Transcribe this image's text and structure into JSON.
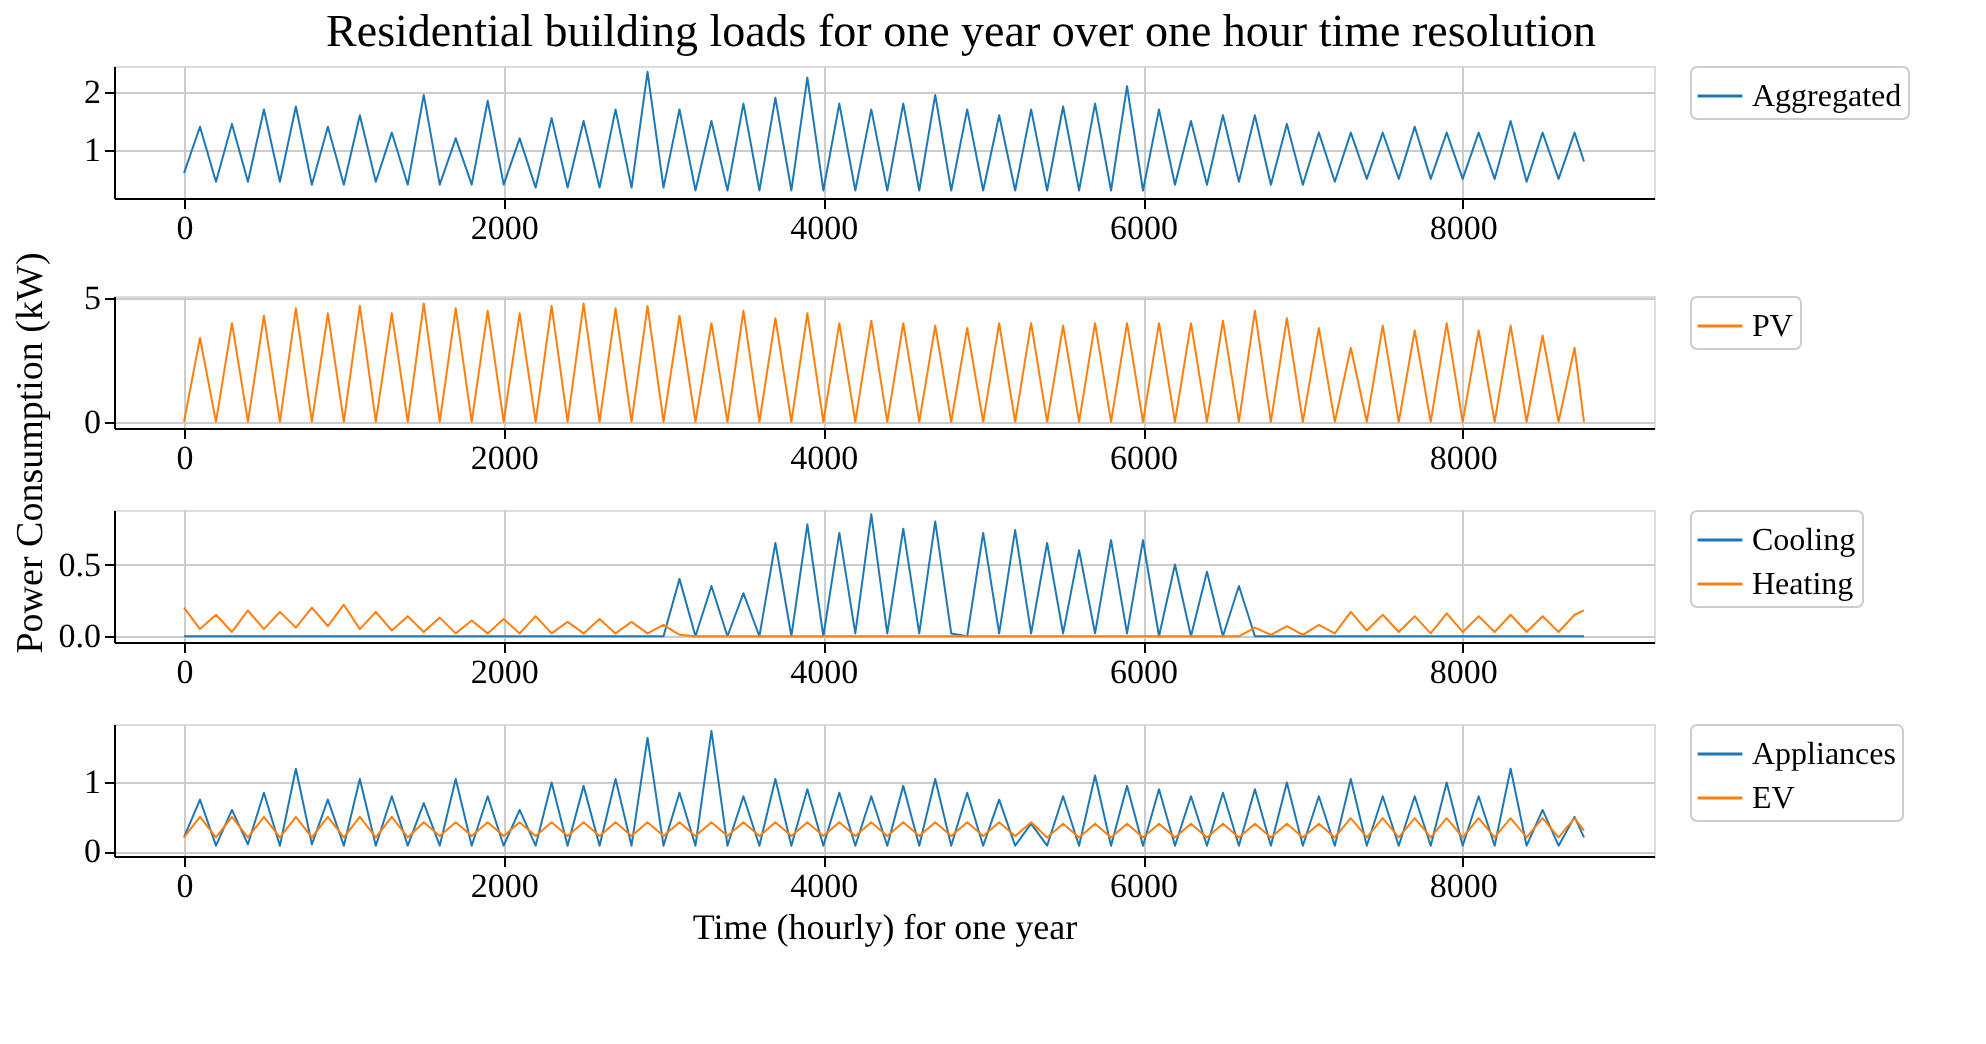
{
  "chart_data": [
    {
      "type": "line",
      "title": "Residential building loads for one year over one hour time resolution",
      "ylabel": "Power Consumption  (kW)",
      "xlim": [
        -438,
        9197
      ],
      "xticks": [
        0,
        2000,
        4000,
        6000,
        8000
      ],
      "ylim": [
        0.17,
        2.45
      ],
      "yticks": [
        1,
        2
      ],
      "grid": true,
      "legend": "top right",
      "x": [
        0,
        100,
        200,
        300,
        400,
        500,
        600,
        700,
        800,
        900,
        1000,
        1100,
        1200,
        1300,
        1400,
        1500,
        1600,
        1700,
        1800,
        1900,
        2000,
        2100,
        2200,
        2300,
        2400,
        2500,
        2600,
        2700,
        2800,
        2900,
        3000,
        3100,
        3200,
        3300,
        3400,
        3500,
        3600,
        3700,
        3800,
        3900,
        4000,
        4100,
        4200,
        4300,
        4400,
        4500,
        4600,
        4700,
        4800,
        4900,
        5000,
        5100,
        5200,
        5300,
        5400,
        5500,
        5600,
        5700,
        5800,
        5900,
        6000,
        6100,
        6200,
        6300,
        6400,
        6500,
        6600,
        6700,
        6800,
        6900,
        7000,
        7100,
        7200,
        7300,
        7400,
        7500,
        7600,
        7700,
        7800,
        7900,
        8000,
        8100,
        8200,
        8300,
        8400,
        8500,
        8600,
        8700,
        8759
      ],
      "series": [
        {
          "name": "Aggregated",
          "color": "#1f77b4",
          "values": [
            0.6,
            1.4,
            0.45,
            1.45,
            0.45,
            1.7,
            0.45,
            1.75,
            0.4,
            1.4,
            0.4,
            1.6,
            0.45,
            1.3,
            0.4,
            1.95,
            0.4,
            1.2,
            0.4,
            1.85,
            0.4,
            1.2,
            0.35,
            1.55,
            0.35,
            1.5,
            0.35,
            1.7,
            0.35,
            2.35,
            0.35,
            1.7,
            0.3,
            1.5,
            0.3,
            1.8,
            0.3,
            1.9,
            0.3,
            2.25,
            0.3,
            1.8,
            0.3,
            1.7,
            0.3,
            1.8,
            0.3,
            1.95,
            0.3,
            1.7,
            0.3,
            1.6,
            0.3,
            1.7,
            0.3,
            1.75,
            0.3,
            1.8,
            0.3,
            2.1,
            0.3,
            1.7,
            0.4,
            1.5,
            0.4,
            1.6,
            0.45,
            1.6,
            0.4,
            1.45,
            0.4,
            1.3,
            0.45,
            1.3,
            0.5,
            1.3,
            0.5,
            1.4,
            0.5,
            1.3,
            0.5,
            1.3,
            0.5,
            1.5,
            0.45,
            1.3,
            0.5,
            1.3,
            0.8
          ]
        }
      ]
    },
    {
      "type": "line",
      "xlim": [
        -438,
        9197
      ],
      "xticks": [
        0,
        2000,
        4000,
        6000,
        8000
      ],
      "ylim": [
        -0.25,
        5.1
      ],
      "yticks": [
        0,
        5
      ],
      "grid": true,
      "legend": "top right",
      "x": [
        0,
        100,
        200,
        300,
        400,
        500,
        600,
        700,
        800,
        900,
        1000,
        1100,
        1200,
        1300,
        1400,
        1500,
        1600,
        1700,
        1800,
        1900,
        2000,
        2100,
        2200,
        2300,
        2400,
        2500,
        2600,
        2700,
        2800,
        2900,
        3000,
        3100,
        3200,
        3300,
        3400,
        3500,
        3600,
        3700,
        3800,
        3900,
        4000,
        4100,
        4200,
        4300,
        4400,
        4500,
        4600,
        4700,
        4800,
        4900,
        5000,
        5100,
        5200,
        5300,
        5400,
        5500,
        5600,
        5700,
        5800,
        5900,
        6000,
        6100,
        6200,
        6300,
        6400,
        6500,
        6600,
        6700,
        6800,
        6900,
        7000,
        7100,
        7200,
        7300,
        7400,
        7500,
        7600,
        7700,
        7800,
        7900,
        8000,
        8100,
        8200,
        8300,
        8400,
        8500,
        8600,
        8700,
        8759
      ],
      "series": [
        {
          "name": "PV",
          "color": "#ff7f0e",
          "values": [
            0,
            3.4,
            0,
            4.0,
            0,
            4.3,
            0,
            4.6,
            0,
            4.4,
            0,
            4.7,
            0,
            4.4,
            0,
            4.8,
            0,
            4.6,
            0,
            4.5,
            0,
            4.4,
            0,
            4.7,
            0,
            4.8,
            0,
            4.6,
            0,
            4.7,
            0,
            4.3,
            0,
            4.0,
            0,
            4.5,
            0,
            4.2,
            0,
            4.4,
            0,
            4.0,
            0,
            4.1,
            0,
            4.0,
            0,
            3.9,
            0,
            3.8,
            0,
            4.0,
            0,
            4.0,
            0,
            3.9,
            0,
            4.0,
            0,
            4.0,
            0,
            4.0,
            0,
            4.0,
            0,
            4.1,
            0,
            4.5,
            0,
            4.2,
            0,
            3.8,
            0,
            3.0,
            0,
            3.9,
            0,
            3.7,
            0,
            4.0,
            0,
            3.7,
            0,
            3.9,
            0,
            3.5,
            0,
            3.0,
            0
          ]
        }
      ]
    },
    {
      "type": "line",
      "xlim": [
        -438,
        9197
      ],
      "xticks": [
        0,
        2000,
        4000,
        6000,
        8000
      ],
      "ylim": [
        -0.04,
        0.88
      ],
      "yticks": [
        {
          "value": 0,
          "label": "0.0"
        },
        0.5
      ],
      "grid": true,
      "legend": "top right",
      "x": [
        0,
        100,
        200,
        300,
        400,
        500,
        600,
        700,
        800,
        900,
        1000,
        1100,
        1200,
        1300,
        1400,
        1500,
        1600,
        1700,
        1800,
        1900,
        2000,
        2100,
        2200,
        2300,
        2400,
        2500,
        2600,
        2700,
        2800,
        2900,
        3000,
        3100,
        3200,
        3300,
        3400,
        3500,
        3600,
        3700,
        3800,
        3900,
        4000,
        4100,
        4200,
        4300,
        4400,
        4500,
        4600,
        4700,
        4800,
        4900,
        5000,
        5100,
        5200,
        5300,
        5400,
        5500,
        5600,
        5700,
        5800,
        5900,
        6000,
        6100,
        6200,
        6300,
        6400,
        6500,
        6600,
        6700,
        6800,
        6900,
        7000,
        7100,
        7200,
        7300,
        7400,
        7500,
        7600,
        7700,
        7800,
        7900,
        8000,
        8100,
        8200,
        8300,
        8400,
        8500,
        8600,
        8700,
        8759
      ],
      "series": [
        {
          "name": "Cooling",
          "color": "#1f77b4",
          "values": [
            0,
            0,
            0,
            0,
            0,
            0,
            0,
            0,
            0,
            0,
            0,
            0,
            0,
            0,
            0,
            0,
            0,
            0,
            0,
            0,
            0,
            0,
            0,
            0,
            0,
            0,
            0,
            0,
            0,
            0,
            0,
            0.4,
            0,
            0.35,
            0,
            0.3,
            0,
            0.65,
            0,
            0.78,
            0,
            0.72,
            0.02,
            0.85,
            0.02,
            0.75,
            0.02,
            0.8,
            0.02,
            0,
            0.72,
            0.02,
            0.74,
            0.02,
            0.65,
            0.02,
            0.6,
            0.02,
            0.67,
            0.02,
            0.67,
            0,
            0.5,
            0,
            0.45,
            0,
            0.35,
            0,
            0,
            0,
            0,
            0,
            0,
            0,
            0,
            0,
            0,
            0,
            0,
            0,
            0,
            0,
            0,
            0,
            0,
            0,
            0,
            0,
            0
          ]
        },
        {
          "name": "Heating",
          "color": "#ff7f0e",
          "values": [
            0.2,
            0.05,
            0.15,
            0.03,
            0.18,
            0.05,
            0.17,
            0.06,
            0.2,
            0.07,
            0.22,
            0.05,
            0.17,
            0.04,
            0.14,
            0.03,
            0.13,
            0.02,
            0.11,
            0.02,
            0.12,
            0.02,
            0.14,
            0.02,
            0.1,
            0.02,
            0.12,
            0.02,
            0.1,
            0.02,
            0.08,
            0.01,
            0,
            0,
            0,
            0,
            0,
            0,
            0,
            0,
            0,
            0,
            0,
            0,
            0,
            0,
            0,
            0,
            0,
            0,
            0,
            0,
            0,
            0,
            0,
            0,
            0,
            0,
            0,
            0,
            0,
            0,
            0,
            0,
            0,
            0,
            0,
            0.06,
            0.01,
            0.07,
            0.01,
            0.08,
            0.02,
            0.17,
            0.04,
            0.15,
            0.03,
            0.14,
            0.02,
            0.16,
            0.03,
            0.14,
            0.03,
            0.15,
            0.03,
            0.14,
            0.03,
            0.15,
            0.18
          ]
        }
      ]
    },
    {
      "type": "line",
      "xlabel": "Time (hourly) for one year",
      "xlim": [
        -438,
        9197
      ],
      "xticks": [
        0,
        2000,
        4000,
        6000,
        8000
      ],
      "ylim": [
        -0.07,
        1.85
      ],
      "yticks": [
        0,
        1
      ],
      "grid": true,
      "legend": "top right",
      "x": [
        0,
        100,
        200,
        300,
        400,
        500,
        600,
        700,
        800,
        900,
        1000,
        1100,
        1200,
        1300,
        1400,
        1500,
        1600,
        1700,
        1800,
        1900,
        2000,
        2100,
        2200,
        2300,
        2400,
        2500,
        2600,
        2700,
        2800,
        2900,
        3000,
        3100,
        3200,
        3300,
        3400,
        3500,
        3600,
        3700,
        3800,
        3900,
        4000,
        4100,
        4200,
        4300,
        4400,
        4500,
        4600,
        4700,
        4800,
        4900,
        5000,
        5100,
        5200,
        5300,
        5400,
        5500,
        5600,
        5700,
        5800,
        5900,
        6000,
        6100,
        6200,
        6300,
        6400,
        6500,
        6600,
        6700,
        6800,
        6900,
        7000,
        7100,
        7200,
        7300,
        7400,
        7500,
        7600,
        7700,
        7800,
        7900,
        8000,
        8100,
        8200,
        8300,
        8400,
        8500,
        8600,
        8700,
        8759
      ],
      "series": [
        {
          "name": "Appliances",
          "color": "#1f77b4",
          "values": [
            0.2,
            0.75,
            0.08,
            0.6,
            0.1,
            0.85,
            0.08,
            1.2,
            0.1,
            0.75,
            0.08,
            1.05,
            0.08,
            0.8,
            0.08,
            0.7,
            0.08,
            1.05,
            0.08,
            0.8,
            0.08,
            0.6,
            0.08,
            1.0,
            0.08,
            0.95,
            0.08,
            1.05,
            0.08,
            1.65,
            0.08,
            0.85,
            0.08,
            1.75,
            0.08,
            0.8,
            0.08,
            1.05,
            0.08,
            0.9,
            0.08,
            0.85,
            0.08,
            0.8,
            0.08,
            0.95,
            0.08,
            1.05,
            0.08,
            0.85,
            0.08,
            0.75,
            0.08,
            0.4,
            0.08,
            0.8,
            0.08,
            1.1,
            0.08,
            0.95,
            0.08,
            0.9,
            0.08,
            0.8,
            0.08,
            0.85,
            0.08,
            0.9,
            0.08,
            1.0,
            0.08,
            0.8,
            0.08,
            1.05,
            0.08,
            0.8,
            0.08,
            0.8,
            0.08,
            1.0,
            0.08,
            0.8,
            0.08,
            1.2,
            0.08,
            0.6,
            0.08,
            0.5,
            0.2
          ]
        },
        {
          "name": "EV",
          "color": "#ff7f0e",
          "values": [
            0.2,
            0.5,
            0.2,
            0.5,
            0.2,
            0.5,
            0.2,
            0.5,
            0.2,
            0.5,
            0.2,
            0.5,
            0.2,
            0.5,
            0.2,
            0.42,
            0.22,
            0.42,
            0.22,
            0.42,
            0.22,
            0.42,
            0.22,
            0.42,
            0.22,
            0.42,
            0.22,
            0.42,
            0.22,
            0.42,
            0.22,
            0.42,
            0.22,
            0.42,
            0.22,
            0.42,
            0.22,
            0.42,
            0.22,
            0.42,
            0.22,
            0.42,
            0.22,
            0.42,
            0.22,
            0.42,
            0.22,
            0.42,
            0.22,
            0.42,
            0.22,
            0.42,
            0.22,
            0.42,
            0.2,
            0.4,
            0.2,
            0.4,
            0.2,
            0.4,
            0.2,
            0.4,
            0.2,
            0.4,
            0.2,
            0.4,
            0.2,
            0.4,
            0.2,
            0.4,
            0.2,
            0.4,
            0.2,
            0.48,
            0.2,
            0.48,
            0.2,
            0.48,
            0.2,
            0.48,
            0.2,
            0.48,
            0.2,
            0.48,
            0.2,
            0.48,
            0.2,
            0.48,
            0.3
          ]
        }
      ]
    }
  ]
}
